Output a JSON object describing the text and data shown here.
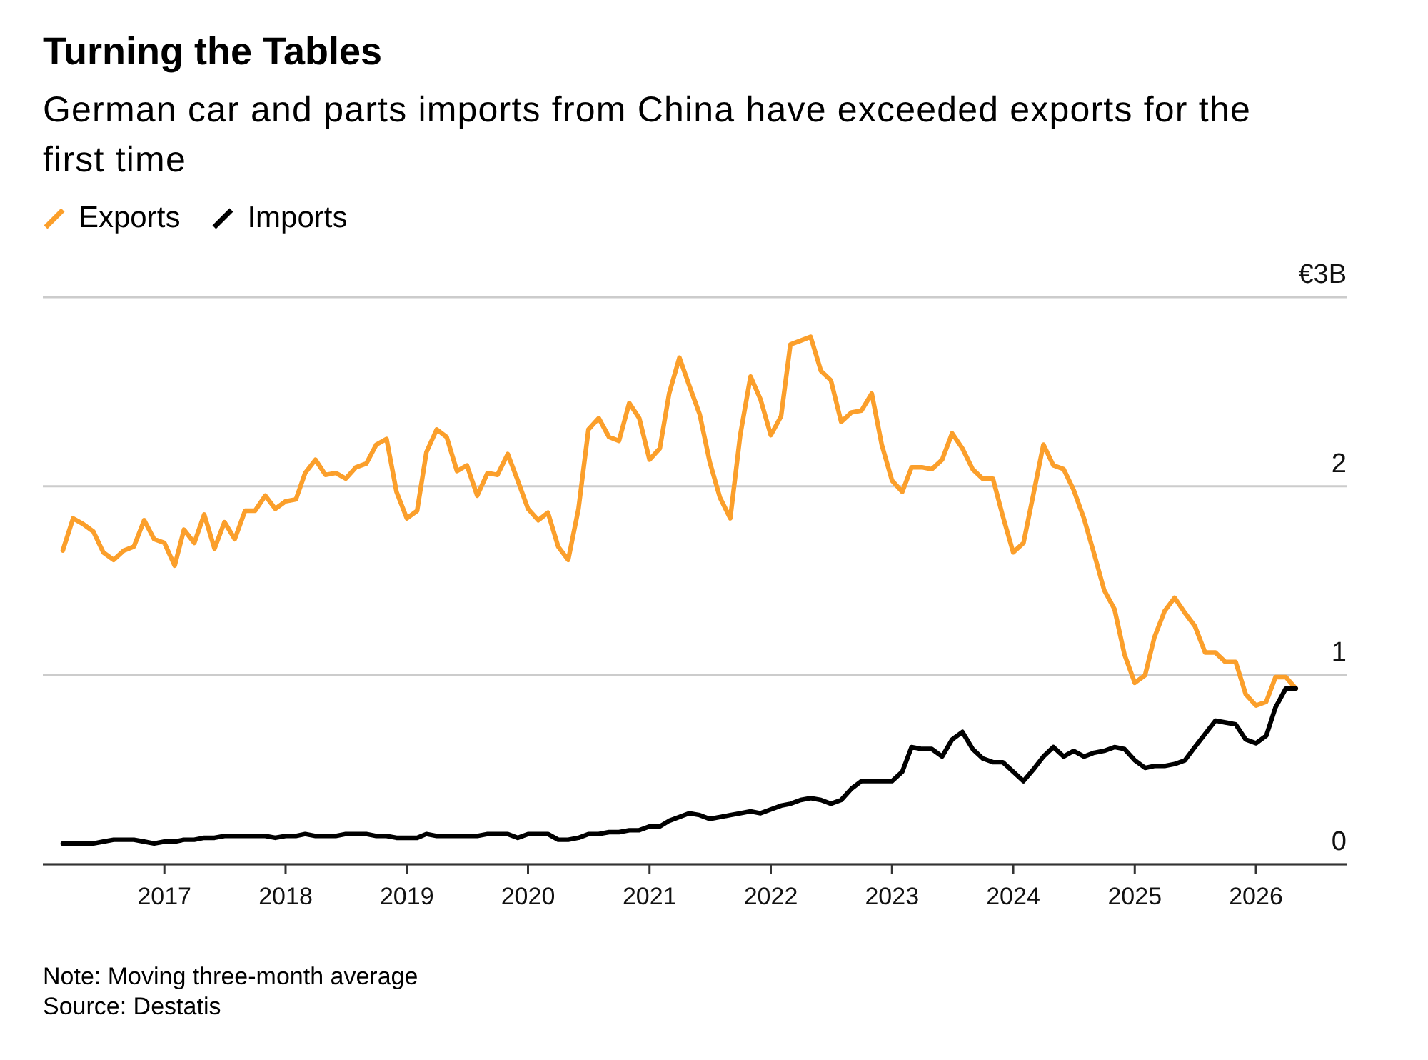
{
  "chart_data": {
    "type": "line",
    "title": "Turning the Tables",
    "subtitle": "German car and parts imports from China have exceeded exports for the first time",
    "x": [
      "2016-03",
      "2016-04",
      "2016-05",
      "2016-06",
      "2016-07",
      "2016-08",
      "2016-09",
      "2016-10",
      "2016-11",
      "2016-12",
      "2017-01",
      "2017-02",
      "2017-03",
      "2017-04",
      "2017-05",
      "2017-06",
      "2017-07",
      "2017-08",
      "2017-09",
      "2017-10",
      "2017-11",
      "2017-12",
      "2018-01",
      "2018-02",
      "2018-03",
      "2018-04",
      "2018-05",
      "2018-06",
      "2018-07",
      "2018-08",
      "2018-09",
      "2018-10",
      "2018-11",
      "2018-12",
      "2019-01",
      "2019-02",
      "2019-03",
      "2019-04",
      "2019-05",
      "2019-06",
      "2019-07",
      "2019-08",
      "2019-09",
      "2019-10",
      "2019-11",
      "2019-12",
      "2020-01",
      "2020-02",
      "2020-03",
      "2020-04",
      "2020-05",
      "2020-06",
      "2020-07",
      "2020-08",
      "2020-09",
      "2020-10",
      "2020-11",
      "2020-12",
      "2021-01",
      "2021-02",
      "2021-03",
      "2021-04",
      "2021-05",
      "2021-06",
      "2021-07",
      "2021-08",
      "2021-09",
      "2021-10",
      "2021-11",
      "2021-12",
      "2022-01",
      "2022-02",
      "2022-03",
      "2022-04",
      "2022-05",
      "2022-06",
      "2022-07",
      "2022-08",
      "2022-09",
      "2022-10",
      "2022-11",
      "2022-12",
      "2023-01",
      "2023-02",
      "2023-03",
      "2023-04",
      "2023-05",
      "2023-06",
      "2023-07",
      "2023-08",
      "2023-09",
      "2023-10",
      "2023-11",
      "2023-12",
      "2024-01",
      "2024-02",
      "2024-03",
      "2024-04",
      "2024-05",
      "2024-06",
      "2024-07",
      "2024-08",
      "2024-09",
      "2024-10",
      "2024-11",
      "2024-12",
      "2025-01",
      "2025-02",
      "2025-03",
      "2025-04",
      "2025-05",
      "2025-06",
      "2025-07",
      "2025-08",
      "2025-09",
      "2025-10",
      "2025-11",
      "2025-12",
      "2026-01",
      "2026-02",
      "2026-03",
      "2026-04",
      "2026-05"
    ],
    "series": [
      {
        "name": "Exports",
        "color": "#fb9f2b",
        "values": [
          1.66,
          1.83,
          1.8,
          1.76,
          1.65,
          1.61,
          1.66,
          1.68,
          1.82,
          1.72,
          1.7,
          1.58,
          1.77,
          1.7,
          1.85,
          1.67,
          1.81,
          1.72,
          1.87,
          1.87,
          1.95,
          1.88,
          1.92,
          1.93,
          2.07,
          2.14,
          2.06,
          2.07,
          2.04,
          2.1,
          2.12,
          2.22,
          2.25,
          1.97,
          1.83,
          1.87,
          2.18,
          2.3,
          2.26,
          2.08,
          2.11,
          1.95,
          2.07,
          2.06,
          2.17,
          2.03,
          1.88,
          1.82,
          1.86,
          1.68,
          1.61,
          1.88,
          2.3,
          2.36,
          2.26,
          2.24,
          2.44,
          2.36,
          2.14,
          2.2,
          2.49,
          2.68,
          2.53,
          2.38,
          2.13,
          1.94,
          1.83,
          2.27,
          2.58,
          2.46,
          2.27,
          2.37,
          2.75,
          2.77,
          2.79,
          2.61,
          2.56,
          2.34,
          2.39,
          2.4,
          2.49,
          2.22,
          2.03,
          1.97,
          2.1,
          2.1,
          2.09,
          2.14,
          2.28,
          2.2,
          2.09,
          2.04,
          2.04,
          1.84,
          1.65,
          1.7,
          1.95,
          2.22,
          2.11,
          2.09,
          1.98,
          1.83,
          1.64,
          1.45,
          1.35,
          1.11,
          0.96,
          1.0,
          1.2,
          1.34,
          1.41,
          1.33,
          1.26,
          1.12,
          1.12,
          1.07,
          1.07,
          0.9,
          0.84,
          0.86,
          0.99,
          0.99,
          0.93
        ]
      },
      {
        "name": "Imports",
        "color": "#000000",
        "values": [
          0.11,
          0.11,
          0.11,
          0.11,
          0.12,
          0.13,
          0.13,
          0.13,
          0.12,
          0.11,
          0.12,
          0.12,
          0.13,
          0.13,
          0.14,
          0.14,
          0.15,
          0.15,
          0.15,
          0.15,
          0.15,
          0.14,
          0.15,
          0.15,
          0.16,
          0.15,
          0.15,
          0.15,
          0.16,
          0.16,
          0.16,
          0.15,
          0.15,
          0.14,
          0.14,
          0.14,
          0.16,
          0.15,
          0.15,
          0.15,
          0.15,
          0.15,
          0.16,
          0.16,
          0.16,
          0.14,
          0.16,
          0.16,
          0.16,
          0.13,
          0.13,
          0.14,
          0.16,
          0.16,
          0.17,
          0.17,
          0.18,
          0.18,
          0.2,
          0.2,
          0.23,
          0.25,
          0.27,
          0.26,
          0.24,
          0.25,
          0.26,
          0.27,
          0.28,
          0.27,
          0.29,
          0.31,
          0.32,
          0.34,
          0.35,
          0.34,
          0.32,
          0.34,
          0.4,
          0.44,
          0.44,
          0.44,
          0.44,
          0.49,
          0.62,
          0.61,
          0.61,
          0.57,
          0.66,
          0.7,
          0.61,
          0.56,
          0.54,
          0.54,
          0.49,
          0.44,
          0.5,
          0.57,
          0.62,
          0.57,
          0.6,
          0.57,
          0.59,
          0.6,
          0.62,
          0.61,
          0.55,
          0.51,
          0.52,
          0.52,
          0.53,
          0.55,
          0.62,
          0.69,
          0.76,
          0.75,
          0.74,
          0.66,
          0.64,
          0.68,
          0.83,
          0.93,
          0.93
        ]
      }
    ],
    "xlim": [
      "2016-01",
      "2026-10"
    ],
    "xticks": [
      "2017",
      "2018",
      "2019",
      "2020",
      "2021",
      "2022",
      "2023",
      "2024",
      "2025",
      "2026"
    ],
    "ylim": [
      0,
      3
    ],
    "yticks": [
      0,
      1,
      2,
      {
        "value": 3,
        "label": "€3B"
      }
    ],
    "grid": "y",
    "legend": "top left",
    "annotations": [
      "Note: Moving three-month average",
      "Source: Destatis"
    ]
  }
}
